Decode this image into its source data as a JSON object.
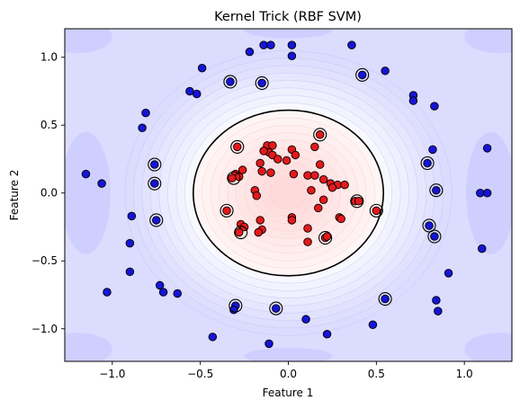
{
  "chart_data": {
    "type": "scatter",
    "title": "Kernel Trick (RBF SVM)",
    "xlabel": "Feature 1",
    "ylabel": "Feature 2",
    "xlim": [
      -1.27,
      1.27
    ],
    "ylim": [
      -1.24,
      1.21
    ],
    "xticks": [
      -1.0,
      -0.5,
      0.0,
      0.5,
      1.0
    ],
    "xtick_labels": [
      "−1.0",
      "−0.5",
      "0.0",
      "0.5",
      "1.0"
    ],
    "yticks": [
      1.0,
      0.5,
      0.0,
      -0.5,
      -1.0
    ],
    "ytick_labels": [
      "1.0",
      "0.5",
      "0.0",
      "−0.5",
      "−1.0"
    ],
    "grid": false,
    "background": {
      "type": "rbf-decision-function-contours",
      "positive_color": "#ff9999",
      "negative_color": "#9999ff"
    },
    "decision_boundary": {
      "shape": "closed-curve",
      "center": [
        0.0,
        0.0
      ],
      "radius_x": 0.54,
      "radius_y_top": 0.61,
      "radius_y_bottom": 0.61,
      "color": "#000000"
    },
    "series": [
      {
        "class": 0,
        "color": "#1515d6",
        "points": [
          [
            -0.14,
            1.09
          ],
          [
            -0.1,
            1.09
          ],
          [
            0.02,
            1.09
          ],
          [
            0.36,
            1.09
          ],
          [
            -0.22,
            1.04
          ],
          [
            0.02,
            1.01
          ],
          [
            -0.49,
            0.92
          ],
          [
            0.42,
            0.87
          ],
          [
            0.55,
            0.9
          ],
          [
            -0.33,
            0.82
          ],
          [
            -0.15,
            0.81
          ],
          [
            -0.56,
            0.75
          ],
          [
            -0.52,
            0.73
          ],
          [
            0.71,
            0.72
          ],
          [
            0.71,
            0.68
          ],
          [
            0.83,
            0.64
          ],
          [
            -0.81,
            0.59
          ],
          [
            -0.83,
            0.48
          ],
          [
            0.82,
            0.32
          ],
          [
            1.13,
            0.33
          ],
          [
            -0.76,
            0.21
          ],
          [
            0.79,
            0.22
          ],
          [
            -1.15,
            0.14
          ],
          [
            -1.06,
            0.07
          ],
          [
            -0.76,
            0.07
          ],
          [
            0.84,
            0.02
          ],
          [
            1.09,
            0.0
          ],
          [
            1.13,
            0.0
          ],
          [
            -0.89,
            -0.17
          ],
          [
            -0.75,
            -0.2
          ],
          [
            0.8,
            -0.24
          ],
          [
            0.83,
            -0.32
          ],
          [
            -0.9,
            -0.37
          ],
          [
            1.1,
            -0.41
          ],
          [
            -0.9,
            -0.58
          ],
          [
            0.91,
            -0.59
          ],
          [
            -0.73,
            -0.68
          ],
          [
            -1.03,
            -0.73
          ],
          [
            -0.71,
            -0.73
          ],
          [
            -0.63,
            -0.74
          ],
          [
            0.55,
            -0.78
          ],
          [
            0.84,
            -0.79
          ],
          [
            -0.3,
            -0.83
          ],
          [
            -0.31,
            -0.86
          ],
          [
            -0.07,
            -0.85
          ],
          [
            0.85,
            -0.87
          ],
          [
            0.1,
            -0.93
          ],
          [
            0.48,
            -0.97
          ],
          [
            -0.43,
            -1.06
          ],
          [
            0.22,
            -1.04
          ],
          [
            -0.11,
            -1.11
          ]
        ]
      },
      {
        "class": 1,
        "color": "#e31a1c",
        "points": [
          [
            -0.12,
            0.35
          ],
          [
            -0.09,
            0.35
          ],
          [
            -0.11,
            0.3
          ],
          [
            -0.14,
            0.31
          ],
          [
            -0.09,
            0.28
          ],
          [
            0.02,
            0.32
          ],
          [
            0.04,
            0.28
          ],
          [
            0.18,
            0.43
          ],
          [
            0.15,
            0.34
          ],
          [
            -0.29,
            0.34
          ],
          [
            -0.06,
            0.25
          ],
          [
            -0.01,
            0.24
          ],
          [
            -0.16,
            0.22
          ],
          [
            -0.3,
            0.14
          ],
          [
            -0.26,
            0.17
          ],
          [
            -0.28,
            0.12
          ],
          [
            -0.32,
            0.11
          ],
          [
            -0.15,
            0.16
          ],
          [
            -0.1,
            0.15
          ],
          [
            0.11,
            0.13
          ],
          [
            0.15,
            0.13
          ],
          [
            0.18,
            0.21
          ],
          [
            0.2,
            0.1
          ],
          [
            0.24,
            0.07
          ],
          [
            0.28,
            0.06
          ],
          [
            0.32,
            0.06
          ],
          [
            0.25,
            0.04
          ],
          [
            0.38,
            -0.06
          ],
          [
            0.2,
            -0.05
          ],
          [
            0.17,
            -0.11
          ],
          [
            0.29,
            -0.18
          ],
          [
            0.4,
            -0.06
          ],
          [
            0.5,
            -0.13
          ],
          [
            -0.19,
            0.02
          ],
          [
            -0.18,
            -0.02
          ],
          [
            0.02,
            -0.18
          ],
          [
            0.02,
            -0.2
          ],
          [
            -0.16,
            -0.2
          ],
          [
            -0.27,
            -0.23
          ],
          [
            -0.25,
            -0.25
          ],
          [
            -0.15,
            -0.27
          ],
          [
            -0.17,
            -0.29
          ],
          [
            -0.28,
            -0.29
          ],
          [
            0.11,
            -0.26
          ],
          [
            0.21,
            -0.33
          ],
          [
            0.22,
            -0.32
          ],
          [
            0.11,
            -0.36
          ],
          [
            0.3,
            -0.19
          ],
          [
            -0.35,
            -0.13
          ],
          [
            0.13,
            0.02
          ],
          [
            0.03,
            0.14
          ]
        ]
      }
    ],
    "support_vectors": [
      [
        -0.33,
        0.82
      ],
      [
        -0.15,
        0.81
      ],
      [
        0.42,
        0.87
      ],
      [
        -0.76,
        0.21
      ],
      [
        -0.76,
        0.07
      ],
      [
        -0.75,
        -0.2
      ],
      [
        0.79,
        0.22
      ],
      [
        0.84,
        0.02
      ],
      [
        0.8,
        -0.24
      ],
      [
        0.83,
        -0.32
      ],
      [
        0.55,
        -0.78
      ],
      [
        -0.3,
        -0.83
      ],
      [
        -0.07,
        -0.85
      ],
      [
        -0.29,
        0.34
      ],
      [
        0.18,
        0.43
      ],
      [
        -0.31,
        0.11
      ],
      [
        -0.35,
        -0.13
      ],
      [
        -0.27,
        -0.29
      ],
      [
        0.39,
        -0.06
      ],
      [
        0.5,
        -0.13
      ],
      [
        0.21,
        -0.33
      ]
    ]
  }
}
